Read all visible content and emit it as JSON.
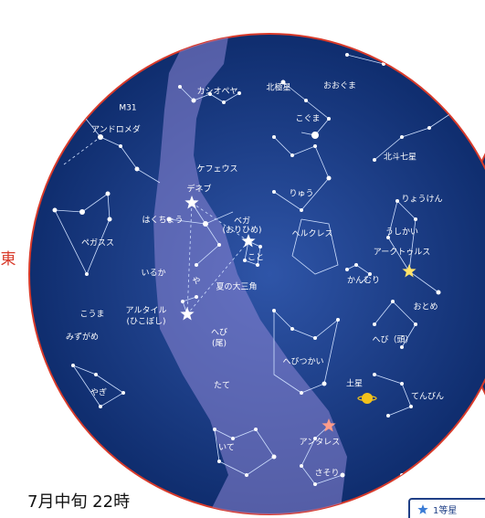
{
  "direction": "東",
  "caption": "7月中旬 22時",
  "legend": "1等星",
  "labels": [
    "M31",
    "アンドロメダ",
    "カシオペヤ",
    "北極星",
    "おおぐま",
    "こぐま",
    "北斗七星",
    "ケフェウス",
    "デネブ",
    "りゅう",
    "りょうけん",
    "はくちょう",
    "ベガ",
    "(おりひめ)",
    "こと",
    "ヘルクレス",
    "うしかい",
    "アークトゥルス",
    "ペガスス",
    "いるか",
    "かんむり",
    "や",
    "夏の大三角",
    "おとめ",
    "こうま",
    "アルタイル",
    "(ひこぼし)",
    "みずがめ",
    "へび",
    "(尾)",
    "へびつかい",
    "へび（頭）",
    "土星",
    "やぎ",
    "たて",
    "てんびん",
    "アンタレス",
    "いて",
    "さそり"
  ]
}
